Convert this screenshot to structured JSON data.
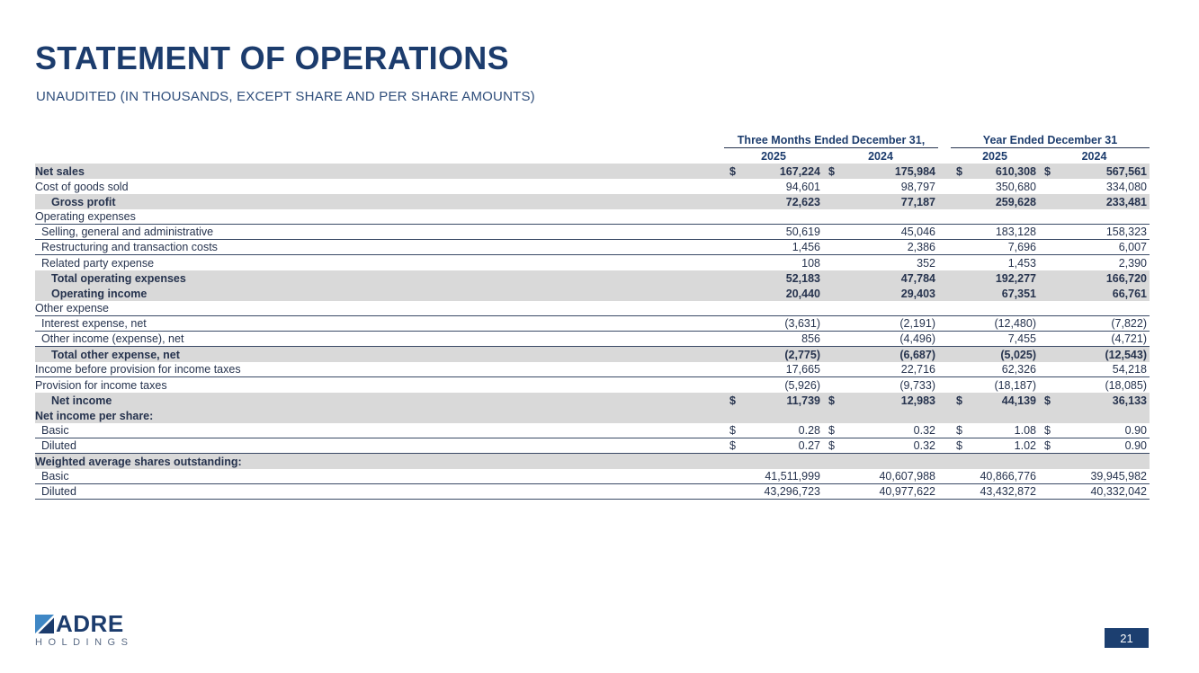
{
  "page": {
    "title": "STATEMENT OF OPERATIONS",
    "subtitle": "UNAUDITED (IN THOUSANDS, EXCEPT SHARE AND PER SHARE AMOUNTS)",
    "page_number": "21"
  },
  "footer": {
    "logo_text": "ADRE",
    "logo_subtext": "HOLDINGS"
  },
  "colors": {
    "navy": "#1c3c6d",
    "row_shade": "#d9d9d9",
    "badge_bg": "#1c3f70",
    "logo_light_blue": "#3f87c5"
  },
  "table": {
    "currency_symbol": "$",
    "col_groups": [
      {
        "label": "Three Months Ended December 31,",
        "cols": [
          "2025",
          "2024"
        ]
      },
      {
        "label": "Year Ended December 31",
        "cols": [
          "2025",
          "2024"
        ]
      }
    ],
    "years": [
      "2025",
      "2024",
      "2025",
      "2024"
    ],
    "rows": [
      {
        "label": "Net sales",
        "indent": 0,
        "bold": true,
        "shaded": true,
        "dollar": true,
        "underline": false,
        "values": [
          "167,224",
          "175,984",
          "610,308",
          "567,561"
        ]
      },
      {
        "label": "Cost of goods sold",
        "indent": 0,
        "bold": false,
        "shaded": false,
        "dollar": false,
        "underline": false,
        "values": [
          "94,601",
          "98,797",
          "350,680",
          "334,080"
        ]
      },
      {
        "label": "Gross profit",
        "indent": 2,
        "bold": true,
        "shaded": true,
        "dollar": false,
        "underline": false,
        "values": [
          "72,623",
          "77,187",
          "259,628",
          "233,481"
        ]
      },
      {
        "label": "Operating expenses",
        "indent": 0,
        "bold": false,
        "shaded": false,
        "dollar": false,
        "underline": true,
        "values": [
          "",
          "",
          "",
          ""
        ]
      },
      {
        "label": "Selling, general and administrative",
        "indent": 1,
        "bold": false,
        "shaded": false,
        "dollar": false,
        "underline": true,
        "values": [
          "50,619",
          "45,046",
          "183,128",
          "158,323"
        ]
      },
      {
        "label": "Restructuring and transaction costs",
        "indent": 1,
        "bold": false,
        "shaded": false,
        "dollar": false,
        "underline": true,
        "values": [
          "1,456",
          "2,386",
          "7,696",
          "6,007"
        ]
      },
      {
        "label": "Related party expense",
        "indent": 1,
        "bold": false,
        "shaded": false,
        "dollar": false,
        "underline": false,
        "values": [
          "108",
          "352",
          "1,453",
          "2,390"
        ]
      },
      {
        "label": "Total operating expenses",
        "indent": 2,
        "bold": true,
        "shaded": true,
        "dollar": false,
        "underline": false,
        "values": [
          "52,183",
          "47,784",
          "192,277",
          "166,720"
        ]
      },
      {
        "label": "Operating income",
        "indent": 2,
        "bold": true,
        "shaded": true,
        "dollar": false,
        "underline": false,
        "values": [
          "20,440",
          "29,403",
          "67,351",
          "66,761"
        ]
      },
      {
        "label": "Other expense",
        "indent": 0,
        "bold": false,
        "shaded": false,
        "dollar": false,
        "underline": true,
        "values": [
          "",
          "",
          "",
          ""
        ]
      },
      {
        "label": "Interest expense, net",
        "indent": 1,
        "bold": false,
        "shaded": false,
        "dollar": false,
        "underline": true,
        "values": [
          "(3,631)",
          "(2,191)",
          "(12,480)",
          "(7,822)"
        ]
      },
      {
        "label": "Other income (expense), net",
        "indent": 1,
        "bold": false,
        "shaded": false,
        "dollar": false,
        "underline": true,
        "values": [
          "856",
          "(4,496)",
          "7,455",
          "(4,721)"
        ]
      },
      {
        "label": "Total other expense, net",
        "indent": 2,
        "bold": true,
        "shaded": true,
        "dollar": false,
        "underline": false,
        "values": [
          "(2,775)",
          "(6,687)",
          "(5,025)",
          "(12,543)"
        ]
      },
      {
        "label": "Income before provision for income taxes",
        "indent": 0,
        "bold": false,
        "shaded": false,
        "dollar": false,
        "underline": true,
        "values": [
          "17,665",
          "22,716",
          "62,326",
          "54,218"
        ]
      },
      {
        "label": "Provision for income taxes",
        "indent": 0,
        "bold": false,
        "shaded": false,
        "dollar": false,
        "underline": false,
        "values": [
          "(5,926)",
          "(9,733)",
          "(18,187)",
          "(18,085)"
        ]
      },
      {
        "label": "Net income",
        "indent": 2,
        "bold": true,
        "shaded": true,
        "dollar": true,
        "underline": false,
        "values": [
          "11,739",
          "12,983",
          "44,139",
          "36,133"
        ]
      },
      {
        "label": "Net income per share:",
        "indent": 0,
        "bold": true,
        "shaded": true,
        "dollar": false,
        "underline": false,
        "values": [
          "",
          "",
          "",
          ""
        ]
      },
      {
        "label": "Basic",
        "indent": 1,
        "bold": false,
        "shaded": false,
        "dollar": true,
        "underline": true,
        "values": [
          "0.28",
          "0.32",
          "1.08",
          "0.90"
        ]
      },
      {
        "label": "Diluted",
        "indent": 1,
        "bold": false,
        "shaded": false,
        "dollar": true,
        "underline": true,
        "values": [
          "0.27",
          "0.32",
          "1.02",
          "0.90"
        ]
      },
      {
        "label": "Weighted average shares outstanding:",
        "indent": 0,
        "bold": true,
        "shaded": true,
        "dollar": false,
        "underline": false,
        "values": [
          "",
          "",
          "",
          ""
        ]
      },
      {
        "label": "Basic",
        "indent": 1,
        "bold": false,
        "shaded": false,
        "dollar": false,
        "underline": true,
        "values": [
          "41,511,999",
          "40,607,988",
          "40,866,776",
          "39,945,982"
        ]
      },
      {
        "label": "Diluted",
        "indent": 1,
        "bold": false,
        "shaded": false,
        "dollar": false,
        "underline": true,
        "values": [
          "43,296,723",
          "40,977,622",
          "43,432,872",
          "40,332,042"
        ]
      }
    ]
  }
}
